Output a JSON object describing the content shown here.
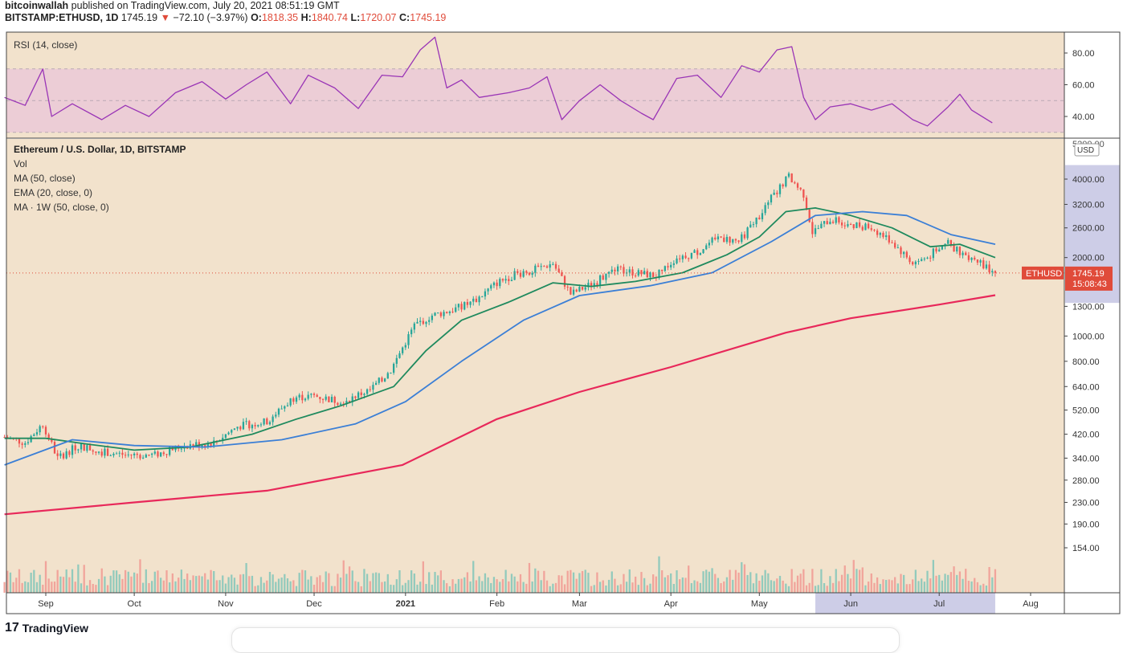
{
  "header": {
    "author": "bitcoinwallah",
    "published": " published on TradingView.com, July 20, 2021 08:51:19 GMT",
    "symbol": "BITSTAMP:ETHUSD, 1D",
    "last": "1745.19",
    "arrow": "▼",
    "change": "−72.10 (−3.97%)",
    "o_label": "O:",
    "o_value": "1818.35",
    "h_label": "H:",
    "h_value": "1840.74",
    "l_label": "L:",
    "l_value": "1720.07",
    "c_label": "C:",
    "c_value": "1745.19"
  },
  "footer": {
    "logo": "17",
    "name": "TradingView"
  },
  "colors": {
    "background": "#f2e2cc",
    "rsi_band": "#eccdd6",
    "rsi_line": "#9a35b6",
    "ema20": "#1f8a5e",
    "ma50": "#3b7fd6",
    "ma_weekly": "#e8285a",
    "up_candle": "#26a69a",
    "down_candle": "#ef5350",
    "price_label": "#e04b3a",
    "range_highlight": "#c4c4e3"
  },
  "chart_data": [
    {
      "type": "line",
      "name": "rsi_pane",
      "title": "RSI (14, close)",
      "ylim": [
        27,
        92
      ],
      "y_ticks": [
        "80.00",
        "60.00",
        "40.00"
      ],
      "band": [
        30,
        70
      ],
      "midline": 50,
      "series": [
        {
          "name": "RSI (14, close)",
          "x": [
            "2020-08-18",
            "2020-08-25",
            "2020-08-31",
            "2020-09-03",
            "2020-09-10",
            "2020-09-20",
            "2020-09-28",
            "2020-10-06",
            "2020-10-15",
            "2020-10-24",
            "2020-11-01",
            "2020-11-08",
            "2020-11-15",
            "2020-11-23",
            "2020-11-29",
            "2020-12-08",
            "2020-12-16",
            "2020-12-24",
            "2020-12-31",
            "2021-01-06",
            "2021-01-11",
            "2021-01-15",
            "2021-01-20",
            "2021-01-26",
            "2021-02-05",
            "2021-02-12",
            "2021-02-18",
            "2021-02-23",
            "2021-03-01",
            "2021-03-08",
            "2021-03-15",
            "2021-03-22",
            "2021-03-26",
            "2021-04-03",
            "2021-04-10",
            "2021-04-18",
            "2021-04-25",
            "2021-05-01",
            "2021-05-07",
            "2021-05-12",
            "2021-05-16",
            "2021-05-20",
            "2021-05-25",
            "2021-06-01",
            "2021-06-08",
            "2021-06-15",
            "2021-06-22",
            "2021-06-27",
            "2021-07-04",
            "2021-07-08",
            "2021-07-12",
            "2021-07-19"
          ],
          "values": [
            52,
            47,
            70,
            40,
            48,
            38,
            47,
            40,
            55,
            62,
            51,
            60,
            68,
            48,
            66,
            58,
            45,
            66,
            65,
            82,
            90,
            58,
            63,
            52,
            55,
            58,
            65,
            38,
            50,
            60,
            50,
            42,
            38,
            64,
            66,
            52,
            72,
            68,
            82,
            84,
            52,
            38,
            46,
            48,
            44,
            48,
            38,
            34,
            46,
            54,
            44,
            36
          ]
        }
      ]
    },
    {
      "type": "line",
      "name": "price_pane",
      "title": "Ethereum / U.S. Dollar, 1D, BITSTAMP",
      "indicators": [
        "Vol",
        "MA (50, close)",
        "EMA (20, close, 0)",
        "MA · 1W (50, close, 0)"
      ],
      "currency": "USD",
      "scale": "log",
      "ylim": [
        136,
        5400
      ],
      "y_ticks": [
        "4000.00",
        "3200.00",
        "2600.00",
        "2000.00",
        "1300.00",
        "1000.00",
        "800.00",
        "640.00",
        "520.00",
        "420.00",
        "340.00",
        "280.00",
        "230.00",
        "190.00",
        "154.00"
      ],
      "x_ticks": [
        "Sep",
        "Oct",
        "Nov",
        "Dec",
        "2021",
        "Feb",
        "Mar",
        "Apr",
        "May",
        "Jun",
        "Jul",
        "Aug"
      ],
      "last_price_label": "ETHUSD",
      "last_price": "1745.19",
      "countdown": "15:08:43",
      "top_tick_partial": "5200.00",
      "series": [
        {
          "name": "Price",
          "x": [
            "2020-08-18",
            "2020-08-25",
            "2020-08-31",
            "2020-09-05",
            "2020-09-12",
            "2020-09-20",
            "2020-09-28",
            "2020-10-08",
            "2020-10-18",
            "2020-10-28",
            "2020-11-05",
            "2020-11-15",
            "2020-11-24",
            "2020-12-01",
            "2020-12-10",
            "2020-12-20",
            "2020-12-27",
            "2021-01-04",
            "2021-01-10",
            "2021-01-16",
            "2021-01-24",
            "2021-02-01",
            "2021-02-07",
            "2021-02-14",
            "2021-02-20",
            "2021-02-26",
            "2021-03-06",
            "2021-03-13",
            "2021-03-20",
            "2021-03-27",
            "2021-04-03",
            "2021-04-10",
            "2021-04-17",
            "2021-04-24",
            "2021-05-01",
            "2021-05-06",
            "2021-05-11",
            "2021-05-16",
            "2021-05-19",
            "2021-05-25",
            "2021-06-01",
            "2021-06-08",
            "2021-06-15",
            "2021-06-22",
            "2021-06-27",
            "2021-07-03",
            "2021-07-08",
            "2021-07-14",
            "2021-07-20"
          ],
          "values": [
            410,
            390,
            460,
            340,
            380,
            360,
            350,
            350,
            380,
            390,
            450,
            470,
            580,
            590,
            560,
            620,
            740,
            1100,
            1200,
            1250,
            1350,
            1600,
            1720,
            1800,
            1900,
            1450,
            1600,
            1800,
            1750,
            1700,
            2000,
            2100,
            2400,
            2300,
            2900,
            3500,
            4100,
            3500,
            2500,
            2800,
            2700,
            2600,
            2300,
            1900,
            2000,
            2300,
            2100,
            1950,
            1745
          ]
        },
        {
          "name": "EMA (20, close, 0)",
          "x": [
            "2020-08-18",
            "2020-09-01",
            "2020-09-15",
            "2020-10-01",
            "2020-10-20",
            "2020-11-10",
            "2020-11-25",
            "2020-12-10",
            "2020-12-28",
            "2021-01-08",
            "2021-01-20",
            "2021-02-05",
            "2021-02-20",
            "2021-03-05",
            "2021-03-20",
            "2021-04-05",
            "2021-04-20",
            "2021-05-01",
            "2021-05-10",
            "2021-05-20",
            "2021-06-01",
            "2021-06-15",
            "2021-06-28",
            "2021-07-08",
            "2021-07-20"
          ],
          "values": [
            405,
            405,
            385,
            365,
            375,
            420,
            480,
            540,
            640,
            880,
            1150,
            1350,
            1600,
            1550,
            1620,
            1750,
            2050,
            2400,
            3000,
            3100,
            2900,
            2600,
            2200,
            2250,
            2000
          ]
        },
        {
          "name": "MA (50, close)",
          "x": [
            "2020-08-18",
            "2020-09-10",
            "2020-10-01",
            "2020-10-25",
            "2020-11-20",
            "2020-12-15",
            "2021-01-01",
            "2021-01-20",
            "2021-02-10",
            "2021-03-01",
            "2021-03-25",
            "2021-04-15",
            "2021-05-05",
            "2021-05-20",
            "2021-06-05",
            "2021-06-20",
            "2021-07-05",
            "2021-07-20"
          ],
          "values": [
            320,
            400,
            380,
            375,
            400,
            460,
            560,
            800,
            1150,
            1430,
            1560,
            1750,
            2300,
            2900,
            3000,
            2900,
            2450,
            2250
          ]
        },
        {
          "name": "MA · 1W (50, close, 0)",
          "x": [
            "2020-08-18",
            "2020-10-01",
            "2020-11-15",
            "2020-12-31",
            "2021-02-01",
            "2021-03-01",
            "2021-04-01",
            "2021-05-10",
            "2021-06-01",
            "2021-07-01",
            "2021-07-20"
          ],
          "values": [
            207,
            230,
            255,
            320,
            480,
            610,
            760,
            1030,
            1170,
            1320,
            1435
          ]
        }
      ]
    }
  ]
}
